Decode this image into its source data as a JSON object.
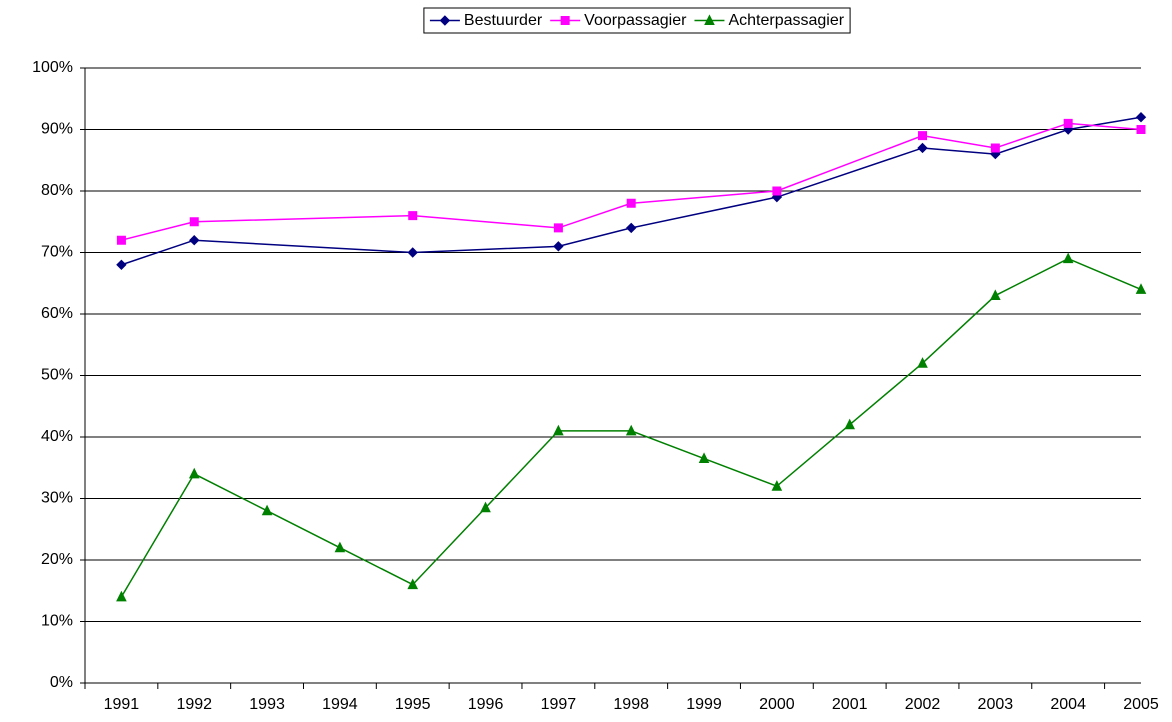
{
  "chart_data": {
    "type": "line",
    "xlim": [
      1990.5,
      2005
    ],
    "xticks": [
      1991,
      1992,
      1993,
      1994,
      1995,
      1996,
      1997,
      1998,
      1999,
      2000,
      2001,
      2002,
      2003,
      2004,
      2005
    ],
    "ylim": [
      0,
      100
    ],
    "yticks": [
      {
        "value": 0,
        "label": "0%"
      },
      {
        "value": 10,
        "label": "10%"
      },
      {
        "value": 20,
        "label": "20%"
      },
      {
        "value": 30,
        "label": "30%"
      },
      {
        "value": 40,
        "label": "40%"
      },
      {
        "value": 50,
        "label": "50%"
      },
      {
        "value": 60,
        "label": "60%"
      },
      {
        "value": 70,
        "label": "70%"
      },
      {
        "value": 80,
        "label": "80%"
      },
      {
        "value": 90,
        "label": "90%"
      },
      {
        "value": 100,
        "label": "100%"
      }
    ],
    "grid": true,
    "legend": "top",
    "series": [
      {
        "name": "Bestuurder",
        "color": "#000080",
        "marker": "diamond",
        "x": [
          1991,
          1992,
          1995,
          1997,
          1998,
          2000,
          2002,
          2003,
          2004,
          2005
        ],
        "values": [
          68,
          72,
          70,
          71,
          74,
          79,
          87,
          86,
          90,
          92
        ]
      },
      {
        "name": "Voorpassagier",
        "color": "#ff00ff",
        "marker": "square",
        "x": [
          1991,
          1992,
          1995,
          1997,
          1998,
          2000,
          2002,
          2003,
          2004,
          2005
        ],
        "values": [
          72,
          75,
          76,
          74,
          78,
          80,
          89,
          87,
          91,
          90
        ]
      },
      {
        "name": "Achterpassagier",
        "color": "#008000",
        "marker": "triangle",
        "x": [
          1991,
          1992,
          1993,
          1994,
          1995,
          1996,
          1997,
          1998,
          1999,
          2000,
          2001,
          2002,
          2003,
          2004,
          2005
        ],
        "values": [
          14,
          34,
          28,
          22,
          16,
          28.5,
          41,
          41,
          36.5,
          32,
          42,
          52,
          63,
          69,
          64
        ]
      }
    ]
  }
}
